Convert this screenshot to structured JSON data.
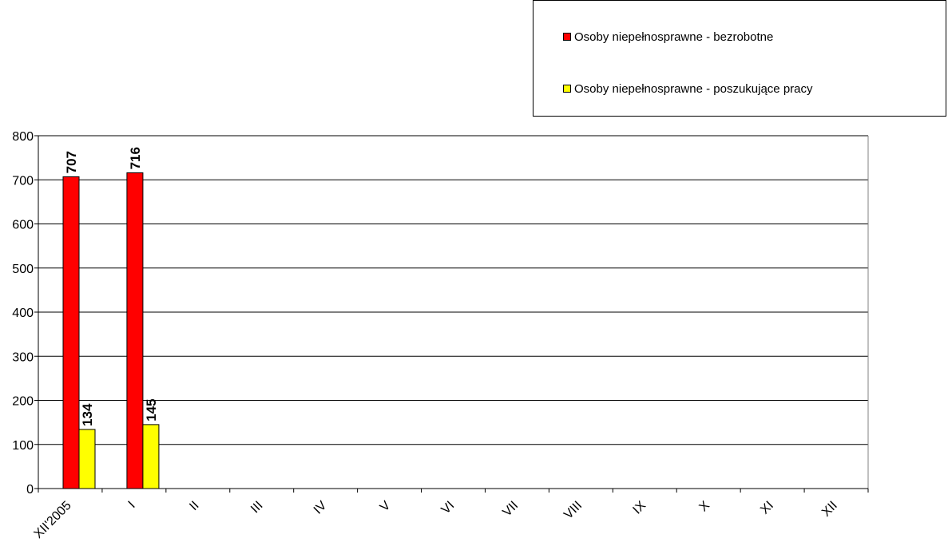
{
  "chart_data": {
    "type": "bar",
    "title": "",
    "xlabel": "",
    "ylabel": "",
    "categories": [
      "XII'2005",
      "I",
      "II",
      "III",
      "IV",
      "V",
      "VI",
      "VII",
      "VIII",
      "IX",
      "X",
      "XI",
      "XII"
    ],
    "series": [
      {
        "name": "Osoby niepełnosprawne - bezrobotne",
        "color": "#ff0000",
        "values": [
          707,
          716,
          null,
          null,
          null,
          null,
          null,
          null,
          null,
          null,
          null,
          null,
          null
        ]
      },
      {
        "name": "Osoby niepełnosprawne - poszukujące pracy",
        "color": "#ffff00",
        "values": [
          134,
          145,
          null,
          null,
          null,
          null,
          null,
          null,
          null,
          null,
          null,
          null,
          null
        ]
      }
    ],
    "ylim": [
      0,
      800
    ],
    "yticks": [
      0,
      100,
      200,
      300,
      400,
      500,
      600,
      700,
      800
    ],
    "grid": true,
    "legend_position": "top-right",
    "data_labels": true
  }
}
